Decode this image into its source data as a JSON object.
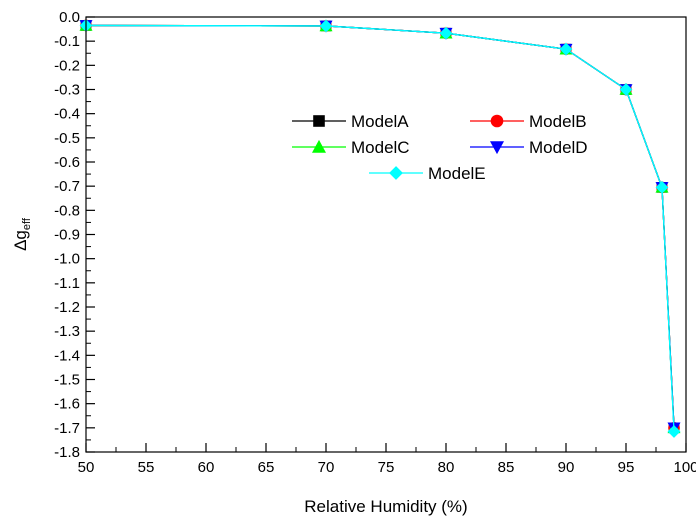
{
  "chart_data": {
    "type": "line",
    "title": "",
    "xlabel": "Relative Humidity (%)",
    "ylabel": "Δg",
    "ylabel_subscript": "eff",
    "xlim": [
      50,
      100
    ],
    "ylim": [
      -1.8,
      0.0
    ],
    "x_ticks": [
      50,
      55,
      60,
      65,
      70,
      75,
      80,
      85,
      90,
      95,
      100
    ],
    "x_tick_labels": [
      "50",
      "55",
      "60",
      "65",
      "70",
      "75",
      "80",
      "85",
      "90",
      "95",
      "100"
    ],
    "y_ticks": [
      0.0,
      -0.1,
      -0.2,
      -0.3,
      -0.4,
      -0.5,
      -0.6,
      -0.7,
      -0.8,
      -0.9,
      -1.0,
      -1.1,
      -1.2,
      -1.3,
      -1.4,
      -1.5,
      -1.6,
      -1.7,
      -1.8
    ],
    "y_tick_labels": [
      "0.0",
      "-0.1",
      "-0.2",
      "-0.3",
      "-0.4",
      "-0.5",
      "-0.6",
      "-0.7",
      "-0.8",
      "-0.9",
      "-1.0",
      "-1.1",
      "-1.2",
      "-1.3",
      "-1.4",
      "-1.5",
      "-1.6",
      "-1.7",
      "-1.8"
    ],
    "grid": false,
    "legend_position": "center-right",
    "x": [
      50,
      70,
      80,
      90,
      95,
      98,
      99
    ],
    "series": [
      {
        "name": "ModelA",
        "color": "#000000",
        "marker": "square",
        "values": [
          -0.035,
          -0.037,
          -0.067,
          -0.133,
          -0.3,
          -0.705,
          -1.7
        ]
      },
      {
        "name": "ModelB",
        "color": "#ff0000",
        "marker": "circle",
        "values": [
          -0.035,
          -0.037,
          -0.067,
          -0.133,
          -0.3,
          -0.705,
          -1.7
        ]
      },
      {
        "name": "ModelC",
        "color": "#00ff00",
        "marker": "triangle-up",
        "values": [
          -0.035,
          -0.037,
          -0.067,
          -0.133,
          -0.3,
          -0.705,
          -1.7
        ]
      },
      {
        "name": "ModelD",
        "color": "#0000ff",
        "marker": "triangle-down",
        "values": [
          -0.035,
          -0.037,
          -0.067,
          -0.133,
          -0.3,
          -0.705,
          -1.7
        ]
      },
      {
        "name": "ModelE",
        "color": "#00ffff",
        "marker": "diamond",
        "values": [
          -0.035,
          -0.037,
          -0.067,
          -0.133,
          -0.3,
          -0.705,
          -1.715
        ]
      }
    ]
  }
}
